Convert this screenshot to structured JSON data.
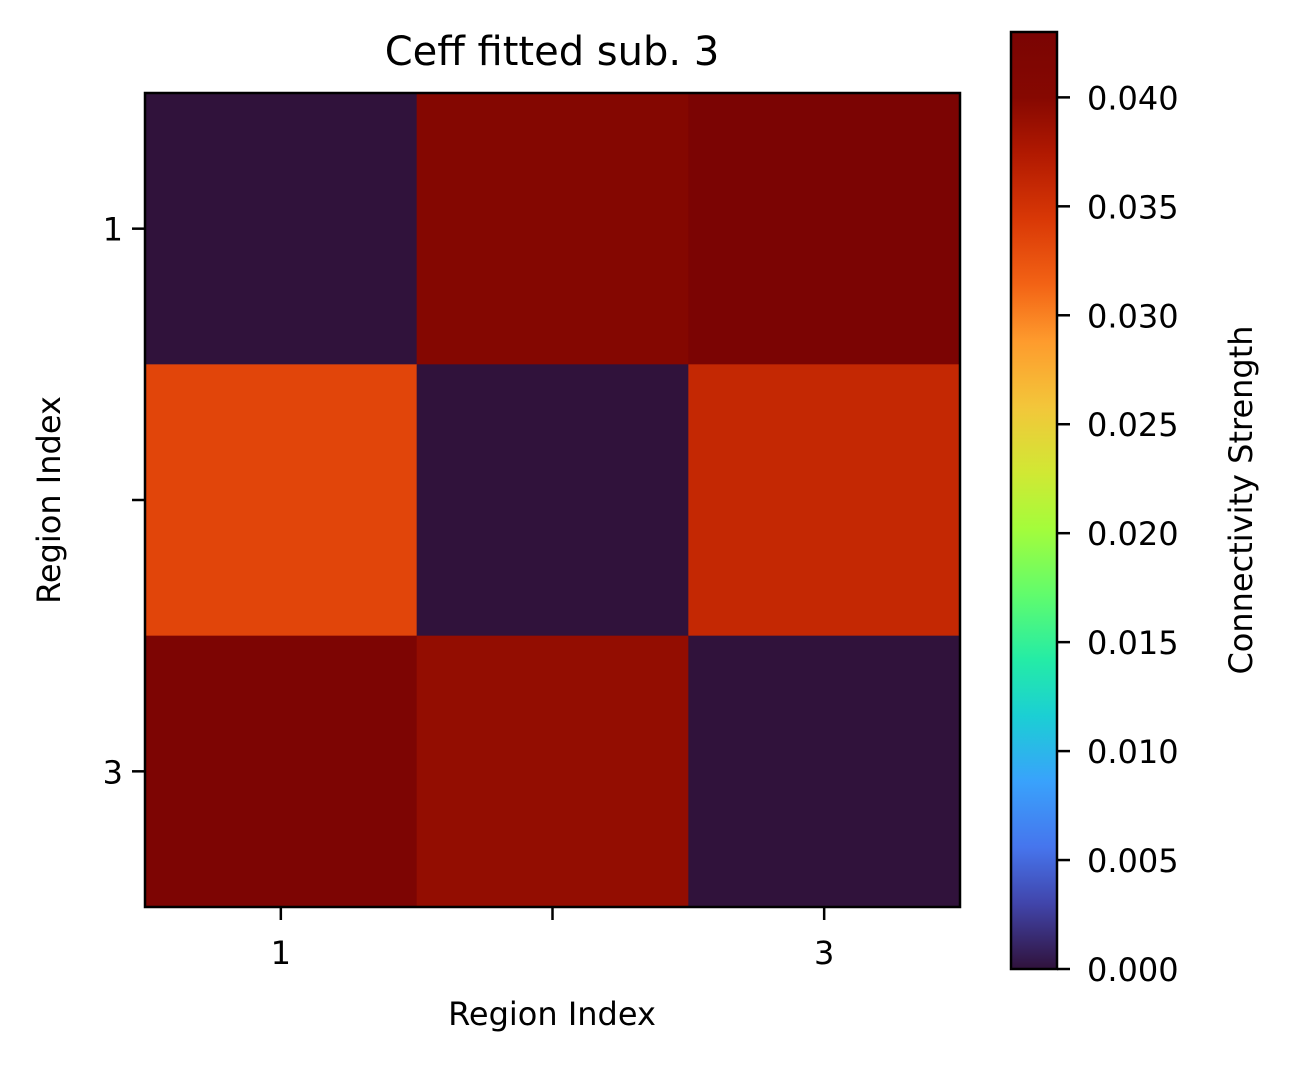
{
  "chart_data": {
    "type": "heatmap",
    "title": "Ceff fitted sub. 3",
    "xlabel": "Region Index",
    "ylabel": "Region Index",
    "x_ticks": [
      "1",
      "",
      "3"
    ],
    "y_ticks": [
      "1",
      "",
      "3"
    ],
    "matrix": [
      [
        0.0,
        0.0405,
        0.0428
      ],
      [
        0.0335,
        0.0,
        0.036
      ],
      [
        0.0423,
        0.0392,
        0.0
      ]
    ],
    "colorbar": {
      "label": "Connectivity Strength",
      "range": [
        0.0,
        0.043
      ],
      "ticks": [
        0.0,
        0.005,
        0.01,
        0.015,
        0.02,
        0.025,
        0.03,
        0.035,
        0.04
      ],
      "tick_labels": [
        "0.000",
        "0.005",
        "0.010",
        "0.015",
        "0.020",
        "0.025",
        "0.030",
        "0.035",
        "0.040"
      ],
      "colormap": "turbo"
    }
  }
}
